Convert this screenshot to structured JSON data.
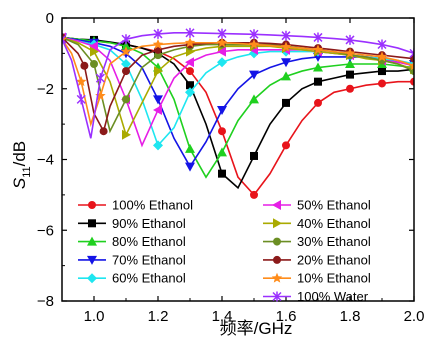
{
  "chart_data": {
    "type": "line",
    "xlabel": "频率/GHz",
    "ylabel_main": "S",
    "ylabel_sub": "11",
    "ylabel_unit": "/dB",
    "xlim": [
      0.9,
      2.0
    ],
    "ylim": [
      -8,
      0
    ],
    "xticks": [
      1.0,
      1.2,
      1.4,
      1.6,
      1.8,
      2.0
    ],
    "xtick_labels": [
      "1.0",
      "1.2",
      "1.4",
      "1.6",
      "1.8",
      "2.0"
    ],
    "yticks": [
      0,
      -2,
      -4,
      -6,
      -8
    ],
    "ytick_labels": [
      "0",
      "−2",
      "−4",
      "−6",
      "−8"
    ],
    "grid": false,
    "legend_columns": [
      [
        0,
        1,
        2,
        3,
        4
      ],
      [
        5,
        6,
        7,
        8,
        9,
        10
      ]
    ],
    "series": [
      {
        "name": "100% Ethanol",
        "color": "#e8141b",
        "marker": "circle",
        "x": [
          0.9,
          0.95,
          1.0,
          1.05,
          1.1,
          1.15,
          1.2,
          1.25,
          1.3,
          1.35,
          1.4,
          1.45,
          1.5,
          1.55,
          1.6,
          1.65,
          1.7,
          1.75,
          1.8,
          1.85,
          1.9,
          1.95,
          2.0
        ],
        "y": [
          -0.55,
          -0.6,
          -0.65,
          -0.7,
          -0.75,
          -0.85,
          -0.95,
          -1.15,
          -1.5,
          -2.1,
          -3.2,
          -4.5,
          -5.0,
          -4.4,
          -3.6,
          -2.9,
          -2.4,
          -2.1,
          -2.0,
          -1.9,
          -1.85,
          -1.8,
          -1.8
        ]
      },
      {
        "name": "90% Ethanol",
        "color": "#000000",
        "marker": "square",
        "x": [
          0.9,
          0.95,
          1.0,
          1.05,
          1.1,
          1.15,
          1.2,
          1.25,
          1.3,
          1.35,
          1.4,
          1.45,
          1.5,
          1.55,
          1.6,
          1.65,
          1.7,
          1.75,
          1.8,
          1.85,
          1.9,
          1.95,
          2.0
        ],
        "y": [
          -0.55,
          -0.6,
          -0.62,
          -0.68,
          -0.75,
          -0.85,
          -1.0,
          -1.3,
          -1.9,
          -3.0,
          -4.4,
          -4.8,
          -3.9,
          -3.0,
          -2.4,
          -2.0,
          -1.8,
          -1.7,
          -1.6,
          -1.55,
          -1.5,
          -1.5,
          -1.45
        ]
      },
      {
        "name": "80% Ethanol",
        "color": "#1fd01f",
        "marker": "triangle-up",
        "x": [
          0.9,
          0.95,
          1.0,
          1.05,
          1.1,
          1.15,
          1.2,
          1.25,
          1.3,
          1.35,
          1.4,
          1.45,
          1.5,
          1.55,
          1.6,
          1.65,
          1.7,
          1.75,
          1.8,
          1.85,
          1.9,
          1.95,
          2.0
        ],
        "y": [
          -0.55,
          -0.6,
          -0.65,
          -0.7,
          -0.8,
          -1.0,
          -1.4,
          -2.3,
          -3.7,
          -4.5,
          -3.8,
          -2.9,
          -2.3,
          -1.9,
          -1.65,
          -1.5,
          -1.4,
          -1.35,
          -1.3,
          -1.3,
          -1.3,
          -1.35,
          -1.4
        ]
      },
      {
        "name": "70% Ethanol",
        "color": "#1414e6",
        "marker": "triangle-down",
        "x": [
          0.9,
          0.95,
          1.0,
          1.05,
          1.1,
          1.15,
          1.2,
          1.25,
          1.3,
          1.35,
          1.4,
          1.45,
          1.5,
          1.55,
          1.6,
          1.65,
          1.7,
          1.75,
          1.8,
          1.85,
          1.9,
          1.95,
          2.0
        ],
        "y": [
          -0.55,
          -0.62,
          -0.7,
          -0.8,
          -1.0,
          -1.4,
          -2.3,
          -3.4,
          -4.2,
          -3.5,
          -2.6,
          -2.0,
          -1.6,
          -1.4,
          -1.25,
          -1.15,
          -1.1,
          -1.1,
          -1.1,
          -1.1,
          -1.15,
          -1.25,
          -1.3
        ]
      },
      {
        "name": "60% Ethanol",
        "color": "#1ee6f0",
        "marker": "diamond",
        "x": [
          0.9,
          0.95,
          1.0,
          1.05,
          1.1,
          1.15,
          1.2,
          1.25,
          1.3,
          1.35,
          1.4,
          1.45,
          1.5,
          1.55,
          1.6,
          1.65,
          1.7,
          1.75,
          1.8,
          1.85,
          1.9,
          1.95,
          2.0
        ],
        "y": [
          -0.55,
          -0.65,
          -0.75,
          -0.9,
          -1.3,
          -2.3,
          -3.6,
          -3.1,
          -2.1,
          -1.55,
          -1.25,
          -1.1,
          -1.0,
          -0.95,
          -0.95,
          -0.95,
          -0.95,
          -1.0,
          -1.05,
          -1.1,
          -1.15,
          -1.2,
          -1.3
        ]
      },
      {
        "name": "50% Ethanol",
        "color": "#e61ee6",
        "marker": "triangle-left",
        "x": [
          0.9,
          0.95,
          1.0,
          1.05,
          1.1,
          1.15,
          1.2,
          1.25,
          1.3,
          1.35,
          1.4,
          1.45,
          1.5,
          1.55,
          1.6,
          1.65,
          1.7,
          1.75,
          1.8,
          1.85,
          1.9,
          1.95,
          2.0
        ],
        "y": [
          -0.55,
          -0.65,
          -0.8,
          -1.2,
          -2.3,
          -3.6,
          -2.6,
          -1.7,
          -1.25,
          -1.05,
          -0.95,
          -0.9,
          -0.9,
          -0.9,
          -0.9,
          -0.9,
          -0.95,
          -1.0,
          -1.05,
          -1.1,
          -1.2,
          -1.25,
          -1.35
        ]
      },
      {
        "name": "40% Ethanol",
        "color": "#aaaa00",
        "marker": "triangle-right",
        "x": [
          0.9,
          0.95,
          1.0,
          1.05,
          1.1,
          1.15,
          1.2,
          1.25,
          1.3,
          1.35,
          1.4,
          1.45,
          1.5,
          1.55,
          1.6,
          1.65,
          1.7,
          1.75,
          1.8,
          1.85,
          1.9,
          1.95,
          2.0
        ],
        "y": [
          -0.55,
          -0.7,
          -0.95,
          -1.8,
          -3.3,
          -2.4,
          -1.5,
          -1.1,
          -0.95,
          -0.85,
          -0.8,
          -0.8,
          -0.8,
          -0.8,
          -0.85,
          -0.9,
          -0.95,
          -1.0,
          -1.05,
          -1.15,
          -1.2,
          -1.3,
          -1.45
        ]
      },
      {
        "name": "30% Ethanol",
        "color": "#6b8e23",
        "marker": "circle",
        "x": [
          0.9,
          0.95,
          1.0,
          1.05,
          1.1,
          1.15,
          1.2,
          1.25,
          1.3,
          1.35,
          1.4,
          1.45,
          1.5,
          1.55,
          1.6,
          1.65,
          1.7,
          1.75,
          1.8,
          1.85,
          1.9,
          1.95,
          2.0
        ],
        "y": [
          -0.55,
          -0.75,
          -1.3,
          -3.2,
          -2.3,
          -1.4,
          -1.05,
          -0.9,
          -0.8,
          -0.75,
          -0.75,
          -0.75,
          -0.75,
          -0.75,
          -0.8,
          -0.85,
          -0.9,
          -0.95,
          -1.05,
          -1.1,
          -1.2,
          -1.3,
          -1.5
        ]
      },
      {
        "name": "20% Ethanol",
        "color": "#8b1a1a",
        "marker": "circle",
        "x": [
          0.9,
          0.95,
          0.97,
          1.0,
          1.03,
          1.05,
          1.1,
          1.15,
          1.2,
          1.25,
          1.3,
          1.35,
          1.4,
          1.45,
          1.5,
          1.55,
          1.6,
          1.65,
          1.7,
          1.75,
          1.8,
          1.85,
          1.9,
          1.95,
          2.0
        ],
        "y": [
          -0.55,
          -1.0,
          -1.35,
          -2.7,
          -3.2,
          -2.5,
          -1.5,
          -1.05,
          -0.9,
          -0.8,
          -0.75,
          -0.72,
          -0.7,
          -0.7,
          -0.7,
          -0.72,
          -0.75,
          -0.8,
          -0.85,
          -0.9,
          -0.95,
          -1.0,
          -1.05,
          -1.1,
          -1.15
        ]
      },
      {
        "name": "10% Ethanol",
        "color": "#ff8c1a",
        "marker": "star",
        "x": [
          0.9,
          0.93,
          0.96,
          0.99,
          1.02,
          1.05,
          1.1,
          1.15,
          1.2,
          1.25,
          1.3,
          1.35,
          1.4,
          1.45,
          1.5,
          1.55,
          1.6,
          1.65,
          1.7,
          1.75,
          1.8,
          1.85,
          1.9,
          1.95,
          2.0
        ],
        "y": [
          -0.6,
          -1.0,
          -1.8,
          -3.0,
          -2.2,
          -1.3,
          -0.95,
          -0.8,
          -0.75,
          -0.72,
          -0.7,
          -0.7,
          -0.7,
          -0.72,
          -0.75,
          -0.78,
          -0.82,
          -0.85,
          -0.9,
          -0.95,
          -1.0,
          -1.05,
          -1.1,
          -1.2,
          -1.35
        ]
      },
      {
        "name": "100% Water",
        "color": "#9b30ff",
        "marker": "x",
        "x": [
          0.9,
          0.93,
          0.96,
          0.99,
          1.02,
          1.05,
          1.1,
          1.15,
          1.2,
          1.25,
          1.3,
          1.35,
          1.4,
          1.45,
          1.5,
          1.55,
          1.6,
          1.65,
          1.7,
          1.75,
          1.8,
          1.85,
          1.9,
          1.95,
          2.0
        ],
        "y": [
          -0.6,
          -1.2,
          -2.3,
          -3.4,
          -1.7,
          -0.9,
          -0.6,
          -0.5,
          -0.45,
          -0.42,
          -0.42,
          -0.43,
          -0.44,
          -0.45,
          -0.46,
          -0.48,
          -0.5,
          -0.52,
          -0.55,
          -0.58,
          -0.62,
          -0.68,
          -0.75,
          -0.85,
          -1.0
        ]
      }
    ]
  }
}
